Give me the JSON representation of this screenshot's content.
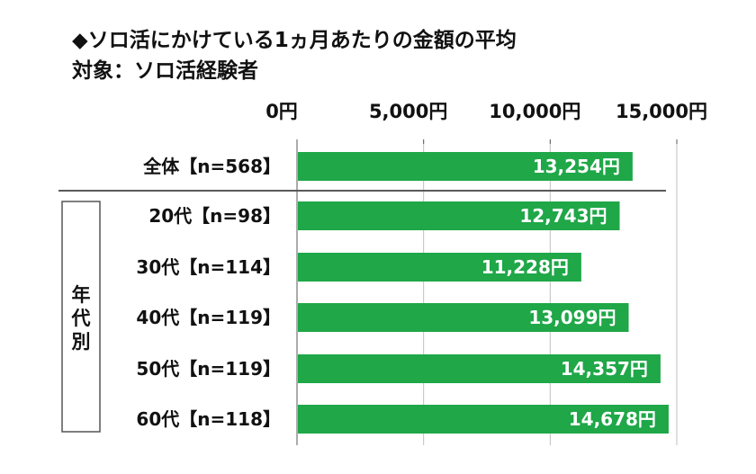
{
  "title": {
    "line1": "◆ソロ活にかけている1ヵ月あたりの金額の平均",
    "line2": "対象：ソロ活経験者"
  },
  "group_label": "年代別",
  "colors": {
    "bar": "#1fa748",
    "grid": "#bfbfbf",
    "axis": "#595959",
    "box": "#555555"
  },
  "chart_data": {
    "type": "bar",
    "orientation": "horizontal",
    "title": "ソロ活にかけている1ヵ月あたりの金額の平均",
    "subtitle": "対象：ソロ活経験者",
    "categories": [
      "全体【n=568】",
      "20代【n=98】",
      "30代【n=114】",
      "40代【n=119】",
      "50代【n=119】",
      "60代【n=118】"
    ],
    "values": [
      13254,
      12743,
      11228,
      13099,
      14357,
      14678
    ],
    "value_labels": [
      "13,254円",
      "12,743円",
      "11,228円",
      "13,099円",
      "14,357円",
      "14,678円"
    ],
    "xlim": [
      0,
      15000
    ],
    "tick_values": [
      0,
      5000,
      10000,
      15000
    ],
    "tick_labels": [
      "0円",
      "5,000円",
      "10,000円",
      "15,000円"
    ],
    "grid": true,
    "legend": "none"
  }
}
